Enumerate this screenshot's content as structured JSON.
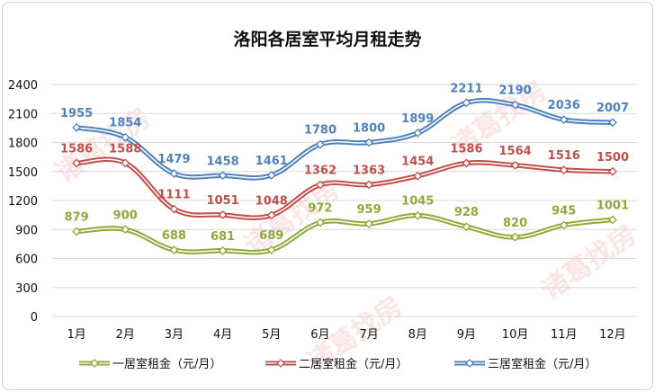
{
  "chart_data": {
    "type": "line",
    "title": "洛阳各居室平均月租走势",
    "categories": [
      "1月",
      "2月",
      "3月",
      "4月",
      "5月",
      "6月",
      "7月",
      "8月",
      "9月",
      "10月",
      "11月",
      "12月"
    ],
    "ylim": [
      0,
      2400
    ],
    "yticks": [
      0,
      300,
      600,
      900,
      1200,
      1500,
      1800,
      2100,
      2400
    ],
    "grid": true,
    "legend_position": "bottom",
    "series": [
      {
        "name": "一居室租金（元/月）",
        "color": "#8faa3a",
        "values": [
          879,
          900,
          688,
          681,
          689,
          972,
          959,
          1045,
          928,
          820,
          945,
          1001
        ]
      },
      {
        "name": "二居室租金（元/月）",
        "color": "#c0504d",
        "values": [
          1586,
          1588,
          1111,
          1051,
          1048,
          1362,
          1363,
          1454,
          1586,
          1564,
          1516,
          1500
        ]
      },
      {
        "name": "三居室租金（元/月）",
        "color": "#4f81bd",
        "values": [
          1955,
          1854,
          1479,
          1458,
          1461,
          1780,
          1800,
          1899,
          2211,
          2190,
          2036,
          2007
        ]
      }
    ]
  },
  "watermark": "诸葛找房"
}
